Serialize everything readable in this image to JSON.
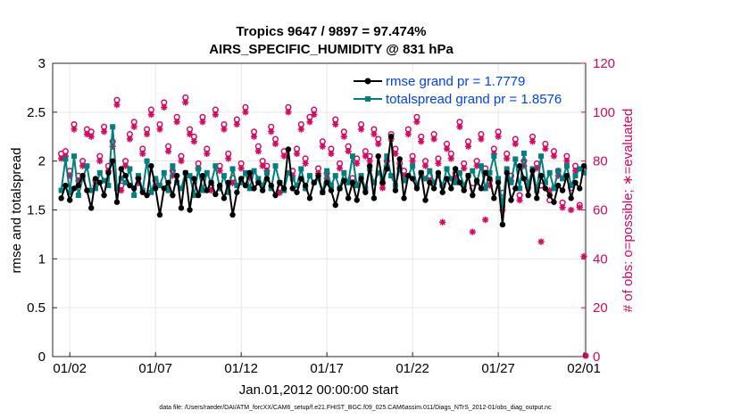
{
  "chart_data": {
    "type": "line",
    "title_line1": "Tropics 9647 / 9897 = 97.474%",
    "title_line2": "AIRS_SPECIFIC_HUMIDITY @ 831 hPa",
    "xlabel": "Jan.01,2012 00:00:00 start",
    "ylabel_left": "rmse and totalspread",
    "ylabel_right": "# of obs: o=possible; ∗=evaluated",
    "xlim": [
      0.5,
      31.6
    ],
    "ylim_left": [
      0,
      3
    ],
    "ylim_right": [
      0,
      120
    ],
    "x_ticks": [
      1.5,
      6.5,
      11.5,
      16.5,
      21.5,
      26.5,
      31.5
    ],
    "x_tick_labels": [
      "01/02",
      "01/07",
      "01/12",
      "01/17",
      "01/22",
      "01/27",
      "02/01"
    ],
    "y_ticks_left": [
      "0",
      "0.5",
      "1",
      "1.5",
      "2",
      "2.5",
      "3"
    ],
    "y_ticks_right": [
      "0",
      "20",
      "40",
      "60",
      "80",
      "100",
      "120"
    ],
    "legend": {
      "rmse": "rmse grand pr = 1.7779",
      "spread": "totalspread grand pr = 1.8576"
    },
    "colors": {
      "rmse": "#000000",
      "spread": "#007f7f",
      "obs": "#d6085f",
      "legend_text": "#0044ee",
      "grid": "#e6e6e6"
    },
    "series": [
      {
        "name": "rmse",
        "x": [
          1.0,
          1.25,
          1.5,
          1.75,
          2.0,
          2.25,
          2.5,
          2.75,
          3.0,
          3.25,
          3.5,
          3.75,
          4.0,
          4.25,
          4.5,
          4.75,
          5.0,
          5.25,
          5.5,
          5.75,
          6.0,
          6.25,
          6.5,
          6.75,
          7.0,
          7.25,
          7.5,
          7.75,
          8.0,
          8.25,
          8.5,
          8.75,
          9.0,
          9.25,
          9.5,
          9.75,
          10.0,
          10.25,
          10.5,
          10.75,
          11.0,
          11.25,
          11.5,
          11.75,
          12.0,
          12.25,
          12.5,
          12.75,
          13.0,
          13.25,
          13.5,
          13.75,
          14.0,
          14.25,
          14.5,
          14.75,
          15.0,
          15.25,
          15.5,
          15.75,
          16.0,
          16.25,
          16.5,
          16.75,
          17.0,
          17.25,
          17.5,
          17.75,
          18.0,
          18.25,
          18.5,
          18.75,
          19.0,
          19.25,
          19.5,
          19.75,
          20.0,
          20.25,
          20.5,
          20.75,
          21.0,
          21.25,
          21.5,
          21.75,
          22.0,
          22.25,
          22.5,
          22.75,
          23.0,
          23.25,
          23.5,
          23.75,
          24.0,
          24.25,
          24.5,
          24.75,
          25.0,
          25.25,
          25.5,
          25.75,
          26.0,
          26.25,
          26.5,
          26.75,
          27.0,
          27.25,
          27.5,
          27.75,
          28.0,
          28.25,
          28.5,
          28.75,
          29.0,
          29.25,
          29.5,
          29.75,
          30.0,
          30.25,
          30.5,
          30.75,
          31.0,
          31.25,
          31.5
        ],
        "values": [
          1.62,
          1.75,
          1.6,
          1.72,
          1.75,
          1.85,
          1.7,
          1.52,
          1.82,
          1.78,
          1.65,
          1.88,
          2.0,
          1.58,
          1.92,
          1.85,
          1.75,
          1.72,
          1.82,
          1.68,
          1.65,
          1.95,
          1.72,
          1.45,
          1.72,
          1.78,
          1.65,
          1.85,
          1.52,
          1.88,
          1.5,
          1.82,
          1.65,
          1.85,
          1.7,
          1.78,
          1.66,
          1.75,
          1.62,
          1.78,
          1.45,
          1.68,
          1.82,
          1.75,
          1.88,
          1.72,
          1.78,
          1.7,
          1.82,
          1.75,
          1.65,
          1.78,
          1.72,
          2.12,
          1.72,
          1.68,
          1.82,
          1.75,
          1.62,
          1.78,
          1.85,
          1.68,
          1.78,
          1.7,
          1.55,
          1.72,
          1.8,
          1.62,
          1.78,
          1.6,
          1.82,
          1.68,
          1.95,
          1.62,
          2.05,
          1.78,
          1.92,
          2.25,
          1.7,
          2.02,
          1.62,
          1.85,
          1.82,
          1.72,
          1.88,
          1.6,
          1.78,
          1.72,
          1.88,
          1.68,
          1.82,
          1.72,
          1.92,
          1.78,
          1.7,
          1.85,
          1.65,
          1.8,
          1.72,
          1.88,
          1.82,
          1.62,
          1.78,
          1.35,
          1.88,
          1.6,
          1.72,
          1.95,
          1.82,
          1.65,
          1.9,
          1.62,
          1.85,
          1.72,
          1.65,
          1.58,
          1.75,
          1.7,
          1.85,
          1.62,
          1.78,
          1.72,
          1.95
        ]
      },
      {
        "name": "totalspread",
        "x": [
          1.0,
          1.25,
          1.5,
          1.75,
          2.0,
          2.25,
          2.5,
          2.75,
          3.0,
          3.25,
          3.5,
          3.75,
          4.0,
          4.25,
          4.5,
          4.75,
          5.0,
          5.25,
          5.5,
          5.75,
          6.0,
          6.25,
          6.5,
          6.75,
          7.0,
          7.25,
          7.5,
          7.75,
          8.0,
          8.25,
          8.5,
          8.75,
          9.0,
          9.25,
          9.5,
          9.75,
          10.0,
          10.25,
          10.5,
          10.75,
          11.0,
          11.25,
          11.5,
          11.75,
          12.0,
          12.25,
          12.5,
          12.75,
          13.0,
          13.25,
          13.5,
          13.75,
          14.0,
          14.25,
          14.5,
          14.75,
          15.0,
          15.25,
          15.5,
          15.75,
          16.0,
          16.25,
          16.5,
          16.75,
          17.0,
          17.25,
          17.5,
          17.75,
          18.0,
          18.25,
          18.5,
          18.75,
          19.0,
          19.25,
          19.5,
          19.75,
          20.0,
          20.25,
          20.5,
          20.75,
          21.0,
          21.25,
          21.5,
          21.75,
          22.0,
          22.25,
          22.5,
          22.75,
          23.0,
          23.25,
          23.5,
          23.75,
          24.0,
          24.25,
          24.5,
          24.75,
          25.0,
          25.25,
          25.5,
          25.75,
          26.0,
          26.25,
          26.5,
          26.75,
          27.0,
          27.25,
          27.5,
          27.75,
          28.0,
          28.25,
          28.5,
          28.75,
          29.0,
          29.25,
          29.5,
          29.75,
          30.0,
          30.25,
          30.5,
          30.75,
          31.0,
          31.25,
          31.5
        ],
        "values": [
          1.7,
          2.02,
          1.68,
          2.05,
          1.65,
          1.82,
          1.95,
          1.7,
          1.72,
          1.88,
          1.8,
          1.75,
          2.35,
          1.72,
          1.82,
          1.78,
          1.92,
          1.65,
          1.85,
          1.7,
          2.0,
          1.68,
          1.82,
          1.75,
          1.88,
          1.7,
          1.95,
          1.78,
          1.72,
          1.88,
          1.85,
          1.65,
          1.92,
          1.7,
          1.88,
          1.78,
          1.95,
          1.72,
          1.85,
          1.68,
          1.92,
          1.75,
          1.78,
          1.88,
          1.72,
          1.9,
          1.82,
          1.75,
          1.88,
          1.72,
          1.95,
          1.78,
          1.7,
          1.88,
          1.82,
          1.75,
          1.92,
          1.72,
          1.85,
          1.78,
          1.82,
          1.68,
          1.9,
          1.75,
          1.85,
          1.72,
          1.88,
          1.78,
          2.05,
          1.75,
          1.85,
          1.72,
          1.92,
          1.78,
          1.88,
          1.82,
          2.05,
          1.85,
          1.75,
          1.92,
          1.8,
          1.85,
          1.95,
          1.75,
          1.88,
          1.82,
          1.9,
          1.78,
          1.85,
          1.75,
          1.92,
          1.82,
          1.78,
          1.88,
          1.75,
          1.85,
          1.9,
          1.78,
          1.95,
          1.72,
          1.88,
          2.05,
          1.82,
          1.55,
          1.92,
          1.78,
          2.02,
          1.72,
          2.08,
          1.75,
          1.92,
          1.7,
          2.05,
          1.78,
          1.88,
          1.72,
          1.9,
          1.82,
          1.95,
          1.75,
          1.85,
          1.92,
          1.88
        ]
      },
      {
        "name": "obs_possible",
        "x": [
          1.0,
          1.25,
          1.5,
          1.75,
          2.0,
          2.25,
          2.5,
          2.75,
          3.0,
          3.25,
          3.5,
          3.75,
          4.0,
          4.25,
          4.5,
          4.75,
          5.0,
          5.25,
          5.5,
          5.75,
          6.0,
          6.25,
          6.5,
          6.75,
          7.0,
          7.25,
          7.5,
          7.75,
          8.0,
          8.25,
          8.5,
          8.75,
          9.0,
          9.25,
          9.5,
          9.75,
          10.0,
          10.25,
          10.5,
          10.75,
          11.0,
          11.25,
          11.5,
          11.75,
          12.0,
          12.25,
          12.5,
          12.75,
          13.0,
          13.25,
          13.5,
          13.75,
          14.0,
          14.25,
          14.5,
          14.75,
          15.0,
          15.25,
          15.5,
          15.75,
          16.0,
          16.25,
          16.5,
          16.75,
          17.0,
          17.25,
          17.5,
          17.75,
          18.0,
          18.25,
          18.5,
          18.75,
          19.0,
          19.25,
          19.5,
          19.75,
          20.0,
          20.25,
          20.5,
          20.75,
          21.0,
          21.25,
          21.5,
          21.75,
          22.0,
          22.25,
          22.5,
          22.75,
          23.0,
          23.25,
          23.5,
          23.75,
          24.0,
          24.25,
          24.5,
          24.75,
          25.0,
          25.25,
          25.5,
          25.75,
          26.0,
          26.25,
          26.5,
          26.75,
          27.0,
          27.25,
          27.5,
          27.75,
          28.0,
          28.25,
          28.5,
          28.75,
          29.0,
          29.25,
          29.5,
          29.75,
          30.0,
          30.25,
          30.5,
          30.75,
          31.0,
          31.25,
          31.5
        ],
        "values": [
          83,
          84,
          76,
          95,
          74,
          80,
          93,
          92,
          72,
          82,
          94,
          78,
          88,
          105,
          70,
          80,
          91,
          96,
          73,
          85,
          93,
          101,
          72,
          95,
          104,
          86,
          76,
          98,
          82,
          106,
          93,
          90,
          79,
          98,
          85,
          70,
          101,
          78,
          95,
          83,
          73,
          97,
          79,
          102,
          75,
          92,
          86,
          80,
          78,
          94,
          89,
          69,
          84,
          102,
          76,
          85,
          95,
          81,
          98,
          101,
          77,
          88,
          75,
          85,
          97,
          79,
          92,
          86,
          73,
          81,
          95,
          84,
          82,
          93,
          89,
          71,
          80,
          91,
          85,
          79,
          76,
          93,
          82,
          98,
          90,
          80,
          74,
          91,
          81,
          70,
          87,
          83,
          75,
          96,
          79,
          88,
          69,
          80,
          91,
          77,
          72,
          85,
          92,
          67,
          83,
          74,
          89,
          66,
          80,
          71,
          90,
          79,
          70,
          87,
          64,
          84,
          76,
          63,
          82,
          69,
          78,
          62,
          77
        ]
      },
      {
        "name": "obs_evaluated",
        "x": [
          1.0,
          1.25,
          1.5,
          1.75,
          2.0,
          2.25,
          2.5,
          2.75,
          3.0,
          3.25,
          3.5,
          3.75,
          4.0,
          4.25,
          4.5,
          4.75,
          5.0,
          5.25,
          5.5,
          5.75,
          6.0,
          6.25,
          6.5,
          6.75,
          7.0,
          7.25,
          7.5,
          7.75,
          8.0,
          8.25,
          8.5,
          8.75,
          9.0,
          9.25,
          9.5,
          9.75,
          10.0,
          10.25,
          10.5,
          10.75,
          11.0,
          11.25,
          11.5,
          11.75,
          12.0,
          12.25,
          12.5,
          12.75,
          13.0,
          13.25,
          13.5,
          13.75,
          14.0,
          14.25,
          14.5,
          14.75,
          15.0,
          15.25,
          15.5,
          15.75,
          16.0,
          16.25,
          16.5,
          16.75,
          17.0,
          17.25,
          17.5,
          17.75,
          18.0,
          18.25,
          18.5,
          18.75,
          19.0,
          19.25,
          19.5,
          19.75,
          20.0,
          20.25,
          20.5,
          20.75,
          21.0,
          21.25,
          21.5,
          21.75,
          22.0,
          22.25,
          22.5,
          22.75,
          23.0,
          23.25,
          23.5,
          23.75,
          24.0,
          24.25,
          24.5,
          24.75,
          25.0,
          25.25,
          25.5,
          25.75,
          26.0,
          26.25,
          26.5,
          26.75,
          27.0,
          27.25,
          27.5,
          27.75,
          28.0,
          28.25,
          28.5,
          28.75,
          29.0,
          29.25,
          29.5,
          29.75,
          30.0,
          30.25,
          30.5,
          30.75,
          31.0,
          31.25,
          31.5
        ],
        "values": [
          81,
          82,
          74,
          93,
          72,
          78,
          91,
          90,
          70,
          80,
          92,
          76,
          86,
          103,
          68,
          78,
          89,
          94,
          71,
          83,
          91,
          99,
          70,
          93,
          102,
          84,
          74,
          96,
          80,
          104,
          91,
          88,
          77,
          96,
          83,
          68,
          99,
          76,
          93,
          81,
          71,
          95,
          77,
          100,
          73,
          90,
          84,
          78,
          76,
          92,
          87,
          67,
          82,
          100,
          74,
          83,
          93,
          79,
          96,
          99,
          75,
          86,
          73,
          83,
          95,
          77,
          90,
          84,
          71,
          79,
          93,
          82,
          80,
          91,
          87,
          69,
          78,
          89,
          83,
          77,
          74,
          91,
          80,
          96,
          88,
          78,
          72,
          89,
          79,
          55,
          85,
          81,
          73,
          94,
          77,
          86,
          51,
          78,
          89,
          56,
          70,
          83,
          90,
          60,
          81,
          72,
          87,
          64,
          78,
          69,
          88,
          77,
          47,
          85,
          68,
          82,
          74,
          61,
          80,
          60,
          76,
          61,
          41
        ]
      }
    ],
    "footnote": "data file: /Users/raeder/DAI/ATM_forcXX/CAM6_setup/f.e21.FHIST_BGC.f09_025.CAM6assim.011/Diags_NTrS_2012-01/obs_diag_output.nc"
  }
}
